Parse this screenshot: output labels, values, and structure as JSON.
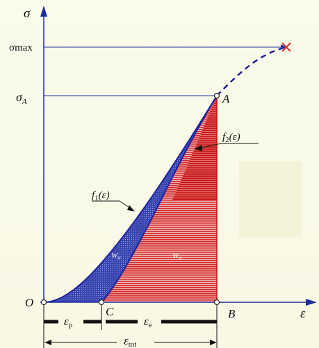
{
  "axes": {
    "y_label": "σ",
    "x_label": "ε",
    "sigma_max_label": "σmax",
    "sigma_a_label": "σ",
    "sigma_a_sub": "A"
  },
  "points": {
    "origin": "O",
    "a": "A",
    "b": "B",
    "c": "C"
  },
  "curves": {
    "f1_name": "f",
    "f1_sub": "1",
    "f1_arg": "(ε)",
    "f2_name": "f",
    "f2_sub": "2",
    "f2_arg": "(ε)"
  },
  "areas": {
    "w_sr_main": "W",
    "w_sr_sub": "sr",
    "w_st_main": "W",
    "w_st_sub": "st"
  },
  "strains": {
    "eps_p": "ε",
    "eps_p_sub": "p",
    "eps_e": "ε",
    "eps_e_sub": "e",
    "eps_tot": "ε",
    "eps_tot_sub": "tot"
  },
  "colors": {
    "axis": "#1a2f9c",
    "curve_line": "#2020a0",
    "loading_fill": "#3a46b0",
    "unloading_fill": "#d42a2a",
    "red_line": "#cc1010",
    "failure_mark": "#e03030"
  },
  "icons": {
    "failure_point": "cross-mark",
    "arrowheads": "triangle"
  }
}
